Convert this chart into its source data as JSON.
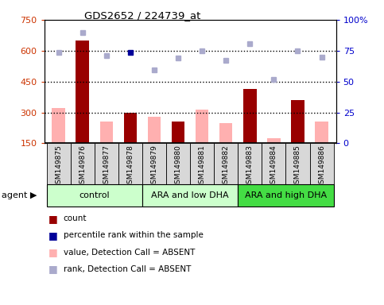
{
  "title": "GDS2652 / 224739_at",
  "samples": [
    "GSM149875",
    "GSM149876",
    "GSM149877",
    "GSM149878",
    "GSM149879",
    "GSM149880",
    "GSM149881",
    "GSM149882",
    "GSM149883",
    "GSM149884",
    "GSM149885",
    "GSM149886"
  ],
  "bar_values": [
    320,
    650,
    255,
    300,
    280,
    255,
    315,
    250,
    415,
    175,
    360,
    255
  ],
  "bar_absent": [
    true,
    false,
    true,
    false,
    true,
    false,
    true,
    true,
    false,
    true,
    false,
    true
  ],
  "rank_values": [
    590,
    690,
    575,
    590,
    505,
    565,
    600,
    555,
    635,
    460,
    600,
    570
  ],
  "rank_absent": [
    true,
    true,
    true,
    false,
    true,
    true,
    true,
    true,
    true,
    true,
    true,
    true
  ],
  "bar_color_present": "#990000",
  "bar_color_absent": "#FFB0B0",
  "rank_color_present": "#000099",
  "rank_color_absent": "#AAAACC",
  "groups": [
    {
      "label": "control",
      "start": 0,
      "end": 3,
      "color": "#CCFFCC"
    },
    {
      "label": "ARA and low DHA",
      "start": 4,
      "end": 7,
      "color": "#CCFFCC"
    },
    {
      "label": "ARA and high DHA",
      "start": 8,
      "end": 11,
      "color": "#44DD44"
    }
  ],
  "ylim_left": [
    150,
    750
  ],
  "ylim_right": [
    0,
    100
  ],
  "yticks_left": [
    150,
    300,
    450,
    600,
    750
  ],
  "ytick_right_labels": [
    "0",
    "25",
    "50",
    "75",
    "100%"
  ],
  "ytick_right_vals": [
    0,
    25,
    50,
    75,
    100
  ],
  "hlines": [
    300,
    450,
    600
  ],
  "left_ycolor": "#CC3300",
  "right_ycolor": "#0000CC",
  "background_color": "#FFFFFF"
}
